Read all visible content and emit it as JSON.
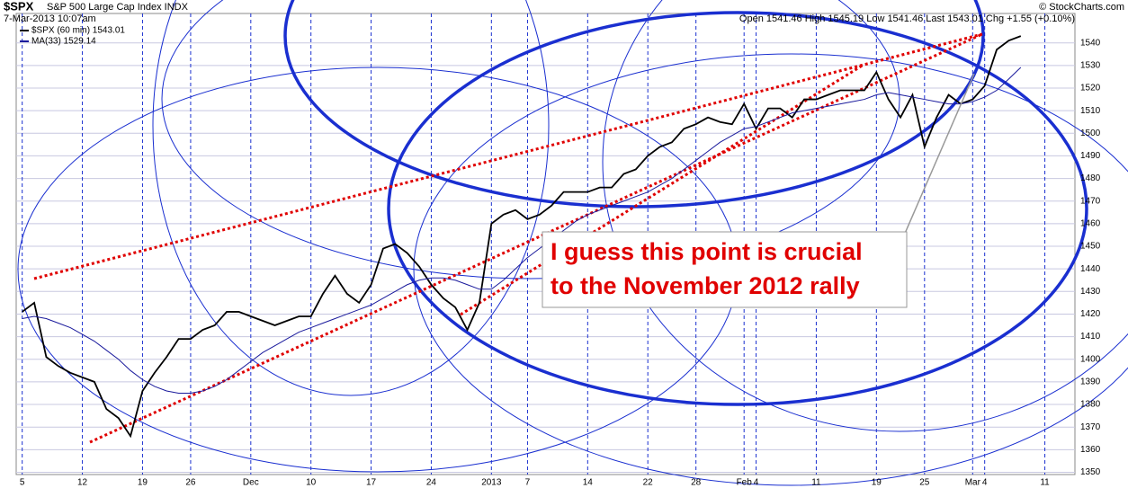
{
  "chart_data": {
    "type": "line",
    "title": "$SPX",
    "subtitle": "S&P 500 Large Cap Index INDX",
    "date": "7-Mar-2013 10:07am",
    "quote": "Open 1541.46 High 1545.19 Low 1541.46 Last 1543.01 Chg +1.55 (+0.10%)",
    "credit": "© StockCharts.com",
    "annotation": [
      "I guess this point is crucial",
      "to the November 2012 rally"
    ],
    "categories": [
      "5",
      null,
      null,
      null,
      null,
      "12",
      null,
      null,
      null,
      null,
      "19",
      null,
      null,
      null,
      "26",
      null,
      null,
      null,
      null,
      "Dec",
      null,
      null,
      null,
      null,
      "10",
      null,
      null,
      null,
      null,
      "17",
      null,
      null,
      null,
      null,
      "24",
      null,
      null,
      null,
      null,
      "2013",
      null,
      null,
      "7",
      null,
      null,
      null,
      null,
      "14",
      null,
      null,
      null,
      null,
      "22",
      null,
      null,
      null,
      "28",
      null,
      null,
      null,
      "Feb",
      "4",
      null,
      null,
      null,
      null,
      "11",
      null,
      null,
      null,
      null,
      "19",
      null,
      null,
      null,
      "25",
      null,
      null,
      null,
      "Mar",
      "4",
      null,
      null,
      null,
      null,
      "11",
      null,
      null
    ],
    "series": [
      {
        "name": "$SPX (60 min) 1543.01",
        "color": "#000000",
        "values": [
          1421,
          1425,
          1401,
          1397,
          1394,
          1392,
          1390,
          1378,
          1374,
          1366,
          1386,
          1394,
          1401,
          1409,
          1409,
          1413,
          1415,
          1421,
          1421,
          1419,
          1417,
          1415,
          1417,
          1419,
          1419,
          1429,
          1437,
          1429,
          1425,
          1433,
          1449,
          1451,
          1447,
          1441,
          1433,
          1427,
          1423,
          1413,
          1425,
          1460,
          1464,
          1466,
          1462,
          1464,
          1468,
          1474,
          1474,
          1474,
          1476,
          1476,
          1482,
          1484,
          1490,
          1494,
          1496,
          1502,
          1504,
          1507,
          1505,
          1504,
          1513,
          1502,
          1511,
          1511,
          1507,
          1515,
          1515,
          1517,
          1519,
          1519,
          1519,
          1527,
          1515,
          1507,
          1517,
          1494,
          1507,
          1517,
          1513,
          1515,
          1521,
          1537,
          1541,
          1543.01,
          null,
          null,
          null,
          null
        ]
      },
      {
        "name": "MA(33) 1529.14",
        "color": "#1a1a9c",
        "values": [
          1418,
          1419,
          1418,
          1416,
          1414,
          1411,
          1408,
          1404,
          1400,
          1395,
          1391,
          1388,
          1386,
          1385,
          1385,
          1386,
          1388,
          1391,
          1395,
          1399,
          1403,
          1406,
          1409,
          1412,
          1414,
          1416,
          1418,
          1420,
          1422,
          1424,
          1427,
          1430,
          1433,
          1435,
          1436,
          1436,
          1435,
          1433,
          1431,
          1431,
          1435,
          1440,
          1445,
          1449,
          1453,
          1457,
          1461,
          1464,
          1466,
          1468,
          1470,
          1472,
          1474,
          1477,
          1480,
          1484,
          1488,
          1492,
          1496,
          1499,
          1502,
          1503,
          1505,
          1507,
          1509,
          1510,
          1511,
          1512,
          1513,
          1514,
          1515,
          1517,
          1518,
          1517,
          1516,
          1515,
          1514,
          1513,
          1513,
          1514,
          1516,
          1519,
          1524,
          1529.14,
          null,
          null,
          null,
          null
        ]
      }
    ],
    "ylim": [
      1349,
      1553
    ],
    "yticks": [
      1350,
      1360,
      1370,
      1380,
      1390,
      1400,
      1410,
      1420,
      1430,
      1440,
      1450,
      1460,
      1470,
      1480,
      1490,
      1500,
      1510,
      1520,
      1530,
      1540
    ],
    "grid": true
  }
}
